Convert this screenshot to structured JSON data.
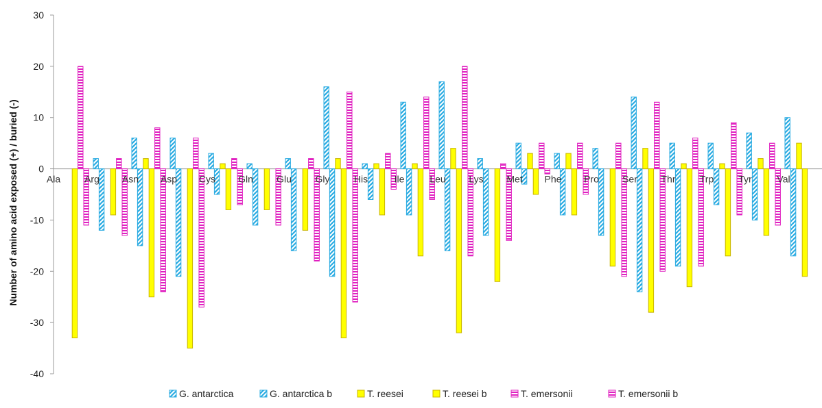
{
  "chart_data": {
    "type": "bar",
    "title": "",
    "xlabel": "",
    "ylabel": "Number of amino acid exposed  (+) / buried  (-)",
    "ylim": [
      -40,
      30
    ],
    "yticks": [
      30,
      20,
      10,
      0,
      -10,
      -20,
      -30,
      -40
    ],
    "grid": false,
    "legend_position": "bottom",
    "categories": [
      "Ala",
      "Arg",
      "Asn",
      "Asp",
      "Cys",
      "Gln",
      "Glu",
      "Gly",
      "His",
      "Ile",
      "Leu",
      "Lys",
      "Met",
      "Phe",
      "Pro",
      "Ser",
      "Thr",
      "Trp",
      "Tyr",
      "Val"
    ],
    "series": [
      {
        "name": "G. antarctica",
        "pattern": "diagonal",
        "color": "#29abe2",
        "values": [
          0,
          2,
          6,
          6,
          3,
          1,
          2,
          16,
          1,
          13,
          17,
          2,
          5,
          3,
          4,
          14,
          5,
          5,
          7,
          10
        ]
      },
      {
        "name": "G. antarctica b",
        "pattern": "diagonal",
        "color": "#29abe2",
        "values": [
          0,
          -12,
          -15,
          -21,
          -5,
          -11,
          -16,
          -21,
          -6,
          -9,
          -16,
          -13,
          -3,
          -9,
          -13,
          -24,
          -19,
          -7,
          -10,
          -17
        ]
      },
      {
        "name": "T. reesei",
        "pattern": "solid",
        "color": "#ffff00",
        "stroke": "#c8b400",
        "values": [
          0,
          0,
          2,
          0,
          1,
          0,
          0,
          2,
          1,
          1,
          4,
          0,
          3,
          3,
          0,
          4,
          1,
          1,
          2,
          5
        ]
      },
      {
        "name": "T. reesei b",
        "pattern": "solid",
        "color": "#ffff00",
        "stroke": "#c8b400",
        "values": [
          -33,
          -9,
          -25,
          -35,
          -8,
          -8,
          -12,
          -33,
          -9,
          -17,
          -32,
          -22,
          -5,
          -9,
          -19,
          -28,
          -23,
          -17,
          -13,
          -21
        ]
      },
      {
        "name": "T. emersonii",
        "pattern": "horizontal",
        "color": "#e020c0",
        "values": [
          20,
          2,
          8,
          6,
          2,
          0,
          2,
          15,
          3,
          14,
          20,
          1,
          5,
          5,
          5,
          13,
          6,
          9,
          5,
          0
        ]
      },
      {
        "name": "T. emersonii b",
        "pattern": "horizontal",
        "color": "#e020c0",
        "values": [
          -11,
          -13,
          -24,
          -27,
          -7,
          -11,
          -18,
          -26,
          -4,
          -6,
          -17,
          -14,
          -1,
          -5,
          -21,
          -20,
          -19,
          -9,
          -11,
          0
        ]
      }
    ]
  }
}
